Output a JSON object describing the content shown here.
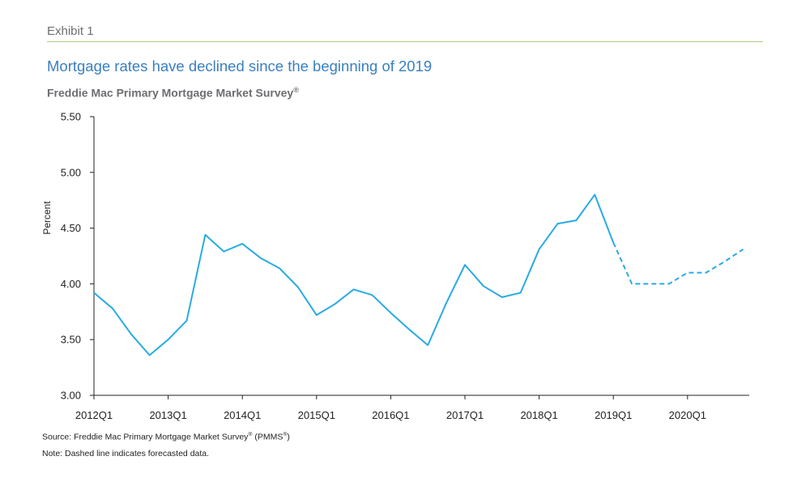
{
  "header": {
    "exhibit": "Exhibit 1",
    "title": "Mortgage rates have declined since the beginning of 2019",
    "subtitle": "Freddie Mac Primary Mortgage Market Survey",
    "subtitle_mark": "®"
  },
  "footer": {
    "source": "Source: Freddie Mac Primary Mortgage Market Survey",
    "source_mark": "®",
    "source_suffix": " (PMMS",
    "source_suffix_mark": "®",
    "source_close": ")",
    "note": "Note: Dashed line indicates forecasted data."
  },
  "colors": {
    "line": "#29abe2",
    "title": "#3a7fc1",
    "rule": "#a9cf82"
  },
  "chart_data": {
    "type": "line",
    "ylabel": "Percent",
    "ylim": [
      3.0,
      5.5
    ],
    "yticks": [
      "3.00",
      "3.50",
      "4.00",
      "4.50",
      "5.00",
      "5.50"
    ],
    "xticks": [
      "2012Q1",
      "2013Q1",
      "2014Q1",
      "2015Q1",
      "2016Q1",
      "2017Q1",
      "2018Q1",
      "2019Q1",
      "2020Q1"
    ],
    "x": [
      "2012Q1",
      "2012Q2",
      "2012Q3",
      "2012Q4",
      "2013Q1",
      "2013Q2",
      "2013Q3",
      "2013Q4",
      "2014Q1",
      "2014Q2",
      "2014Q3",
      "2014Q4",
      "2015Q1",
      "2015Q2",
      "2015Q3",
      "2015Q4",
      "2016Q1",
      "2016Q2",
      "2016Q3",
      "2016Q4",
      "2017Q1",
      "2017Q2",
      "2017Q3",
      "2017Q4",
      "2018Q1",
      "2018Q2",
      "2018Q3",
      "2018Q4",
      "2019Q1",
      "2019Q2",
      "2019Q3",
      "2019Q4",
      "2020Q1",
      "2020Q2",
      "2020Q3",
      "2020Q4"
    ],
    "series": [
      {
        "style": "solid",
        "x": [
          "2012Q1",
          "2012Q2",
          "2012Q3",
          "2012Q4",
          "2013Q1",
          "2013Q2",
          "2013Q3",
          "2013Q4",
          "2014Q1",
          "2014Q2",
          "2014Q3",
          "2014Q4",
          "2015Q1",
          "2015Q2",
          "2015Q3",
          "2015Q4",
          "2016Q1",
          "2016Q2",
          "2016Q3",
          "2016Q4",
          "2017Q1",
          "2017Q2",
          "2017Q3",
          "2017Q4",
          "2018Q1",
          "2018Q2",
          "2018Q3",
          "2018Q4",
          "2019Q1"
        ],
        "values": [
          3.92,
          3.78,
          3.55,
          3.36,
          3.5,
          3.67,
          4.44,
          4.29,
          4.36,
          4.23,
          4.14,
          3.97,
          3.72,
          3.82,
          3.95,
          3.9,
          3.74,
          3.59,
          3.45,
          3.83,
          4.17,
          3.98,
          3.88,
          3.92,
          4.31,
          4.54,
          4.57,
          4.8,
          4.37
        ]
      },
      {
        "style": "dashed",
        "x": [
          "2019Q1",
          "2019Q2",
          "2019Q3",
          "2019Q4",
          "2020Q1",
          "2020Q2",
          "2020Q3",
          "2020Q4"
        ],
        "values": [
          4.37,
          4.0,
          4.0,
          4.0,
          4.1,
          4.1,
          4.2,
          4.31
        ]
      }
    ],
    "grid": false
  }
}
